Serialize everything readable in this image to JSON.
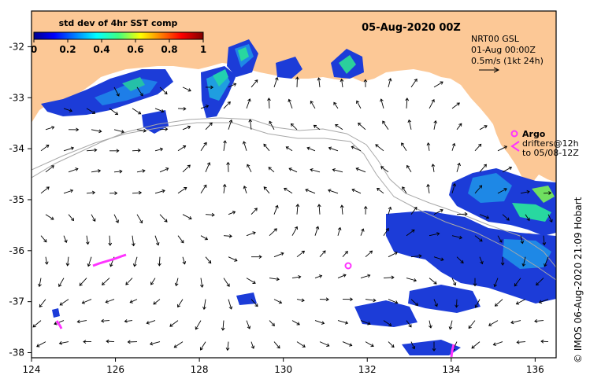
{
  "colorbar": {
    "title": "std dev of 4hr SST comp",
    "ticks": [
      "0",
      "0.2",
      "0.4",
      "0.6",
      "0.8",
      "1"
    ],
    "range": [
      0,
      1
    ]
  },
  "date_label": "05-Aug-2020 00Z",
  "current_info": {
    "line1": "NRT00 GSL",
    "line2": "01-Aug 00:00Z",
    "line3": "0.5m/s (1kt 24h)"
  },
  "argo_legend": {
    "title": "Argo",
    "line1": "drifters@12h",
    "line2": "to 05/08-12Z"
  },
  "credit": "© IMOS 06-Aug-2020 21:09 Hobart",
  "axes": {
    "x_ticks": [
      "124",
      "126",
      "128",
      "130",
      "132",
      "134",
      "136"
    ],
    "y_ticks": [
      "-32",
      "-33",
      "-34",
      "-35",
      "-36",
      "-37",
      "-38"
    ]
  },
  "colors": {
    "land": "#fcc896",
    "bathy": "#a8a8a8",
    "arrows": "#000000",
    "argo": "#ff33ff"
  }
}
